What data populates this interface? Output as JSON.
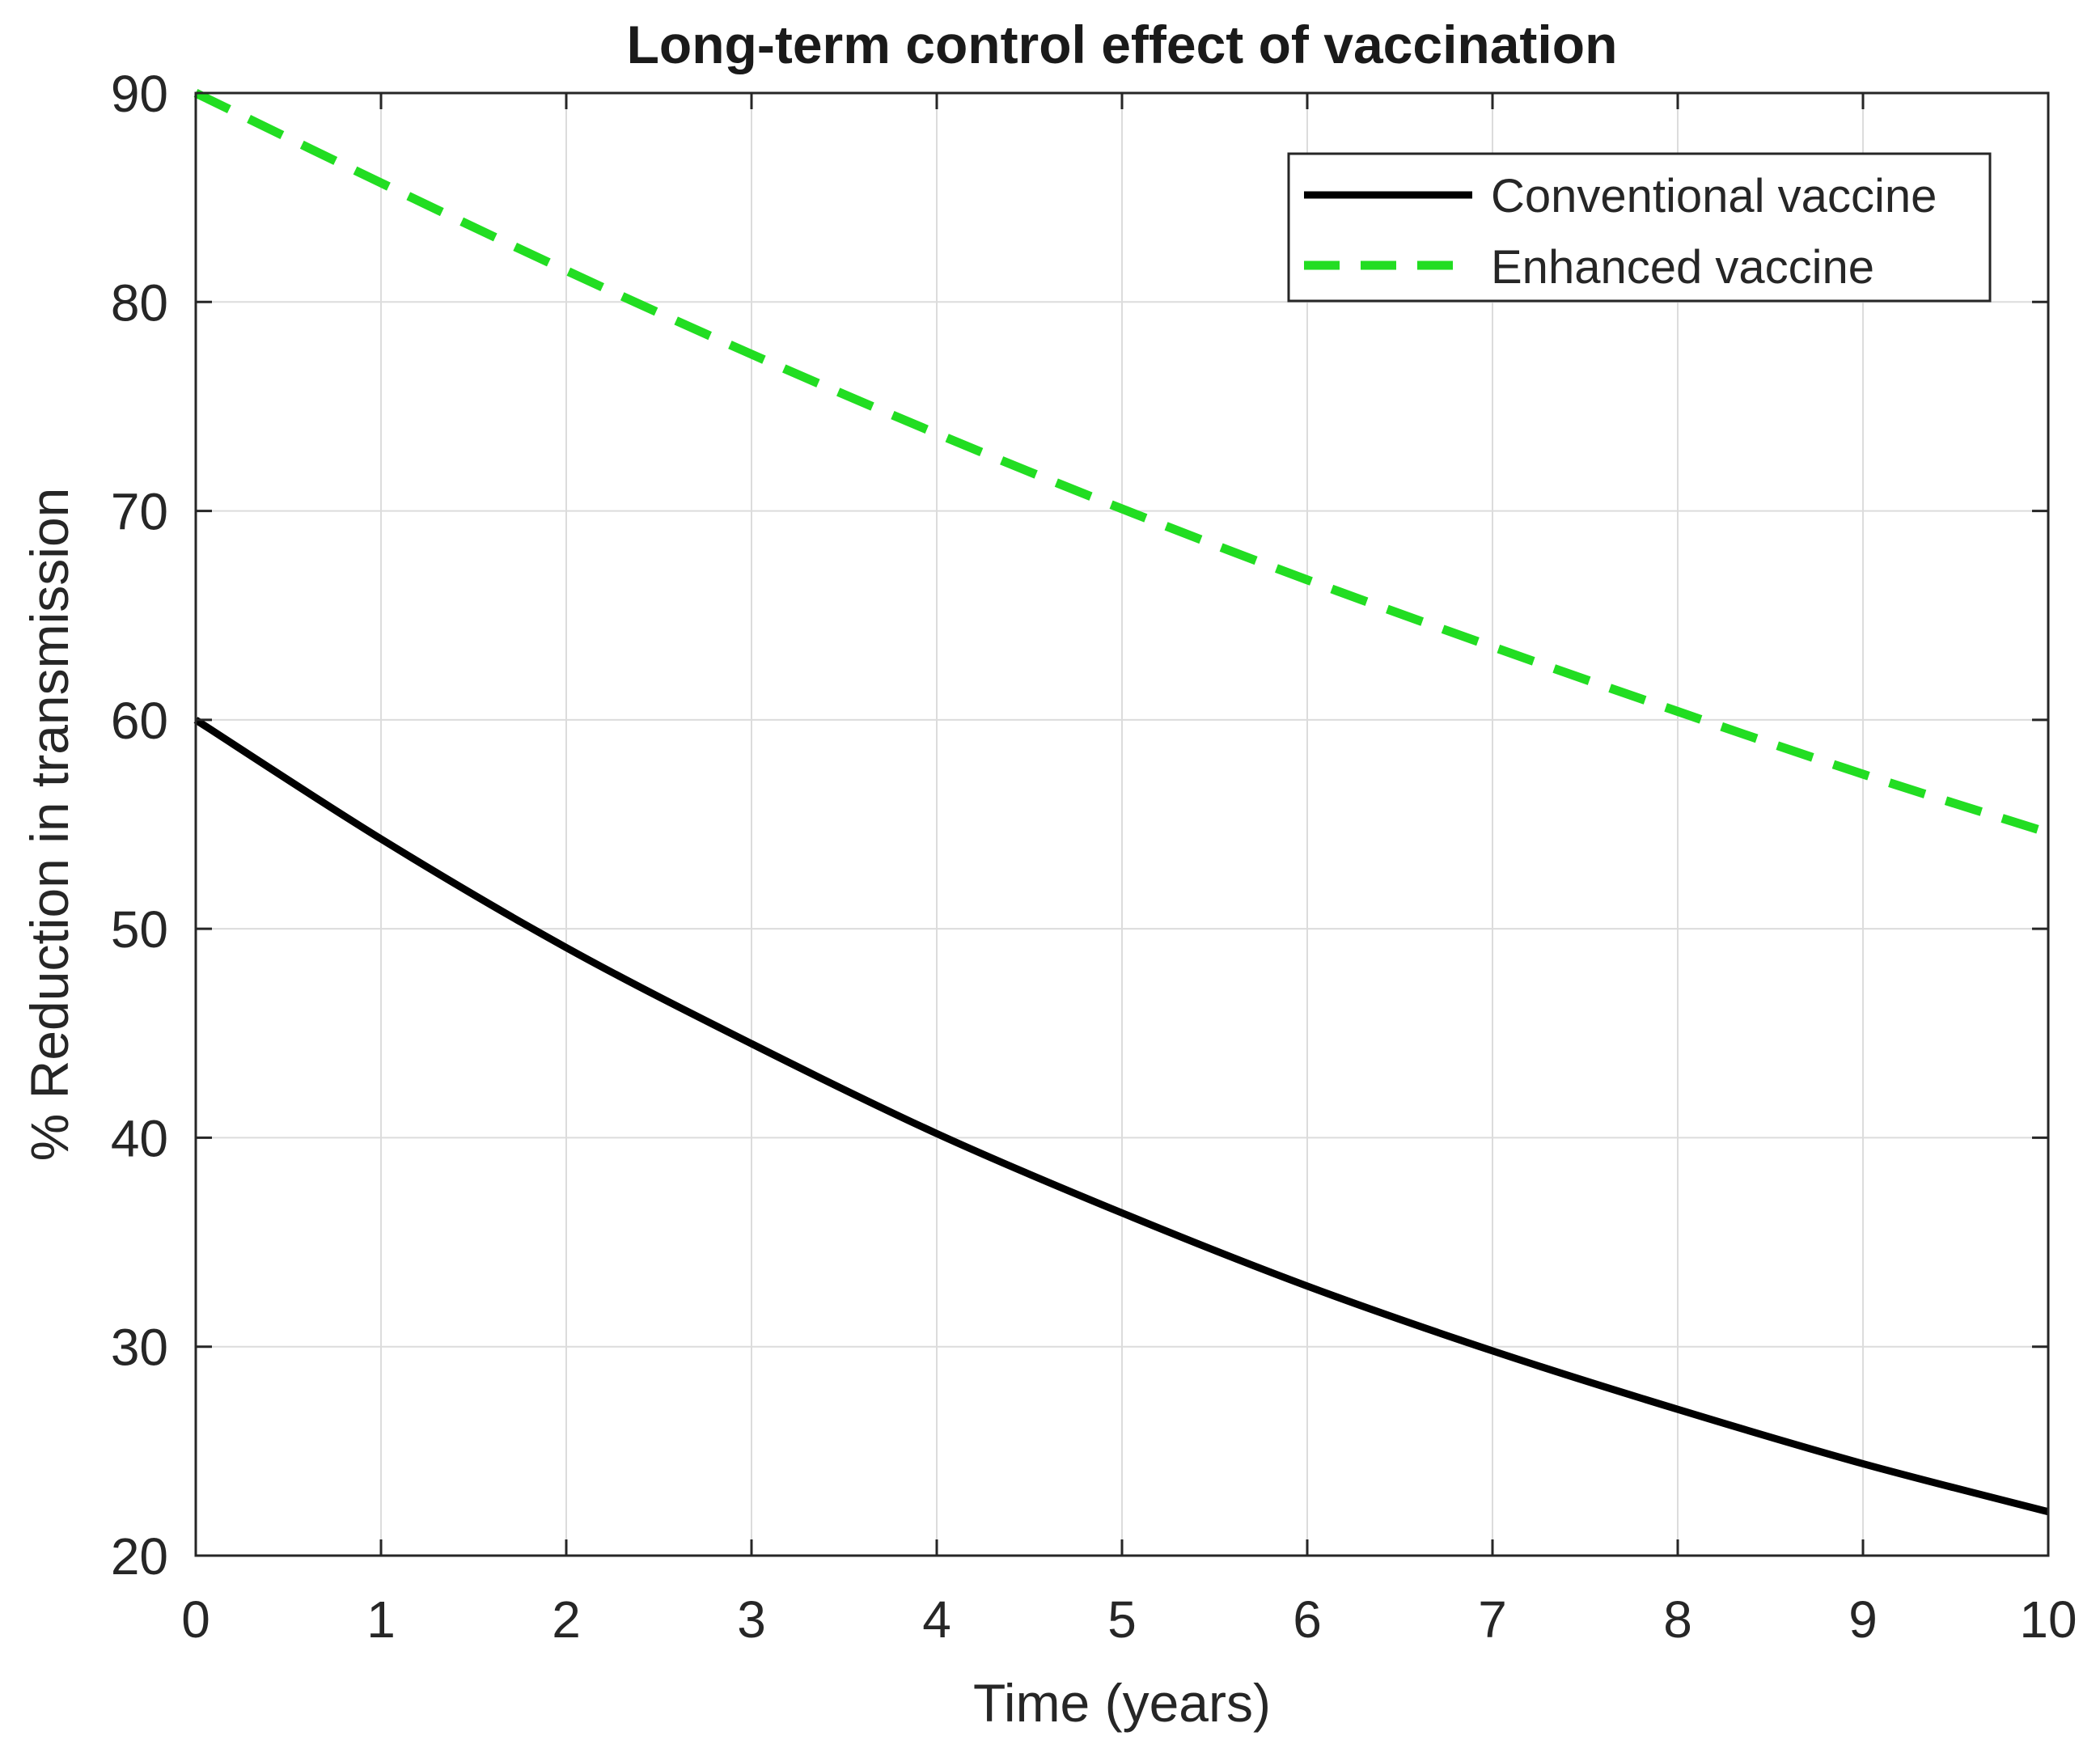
{
  "chart_data": {
    "type": "line",
    "title": "Long-term control effect of vaccination",
    "xlabel": "Time (years)",
    "ylabel": "% Reduction in transmission",
    "xlim": [
      0,
      10
    ],
    "ylim": [
      20,
      90
    ],
    "xticks": [
      0,
      1,
      2,
      3,
      4,
      5,
      6,
      7,
      8,
      9,
      10
    ],
    "yticks": [
      20,
      30,
      40,
      50,
      60,
      70,
      80,
      90
    ],
    "grid": true,
    "legend_position": "top-right",
    "x": [
      0,
      1,
      2,
      3,
      4,
      5,
      6,
      7,
      8,
      9,
      10
    ],
    "series": [
      {
        "name": "Conventional vaccine",
        "color": "#000000",
        "style": "solid",
        "values": [
          60,
          54.3,
          49.1,
          44.5,
          40.2,
          36.4,
          32.9,
          29.8,
          27.0,
          24.4,
          22.1
        ]
      },
      {
        "name": "Enhanced vaccine",
        "color": "#22dd22",
        "style": "dashed",
        "values": [
          90,
          85.7,
          81.5,
          77.5,
          73.7,
          70.1,
          66.7,
          63.5,
          60.4,
          57.4,
          54.6
        ]
      }
    ]
  }
}
